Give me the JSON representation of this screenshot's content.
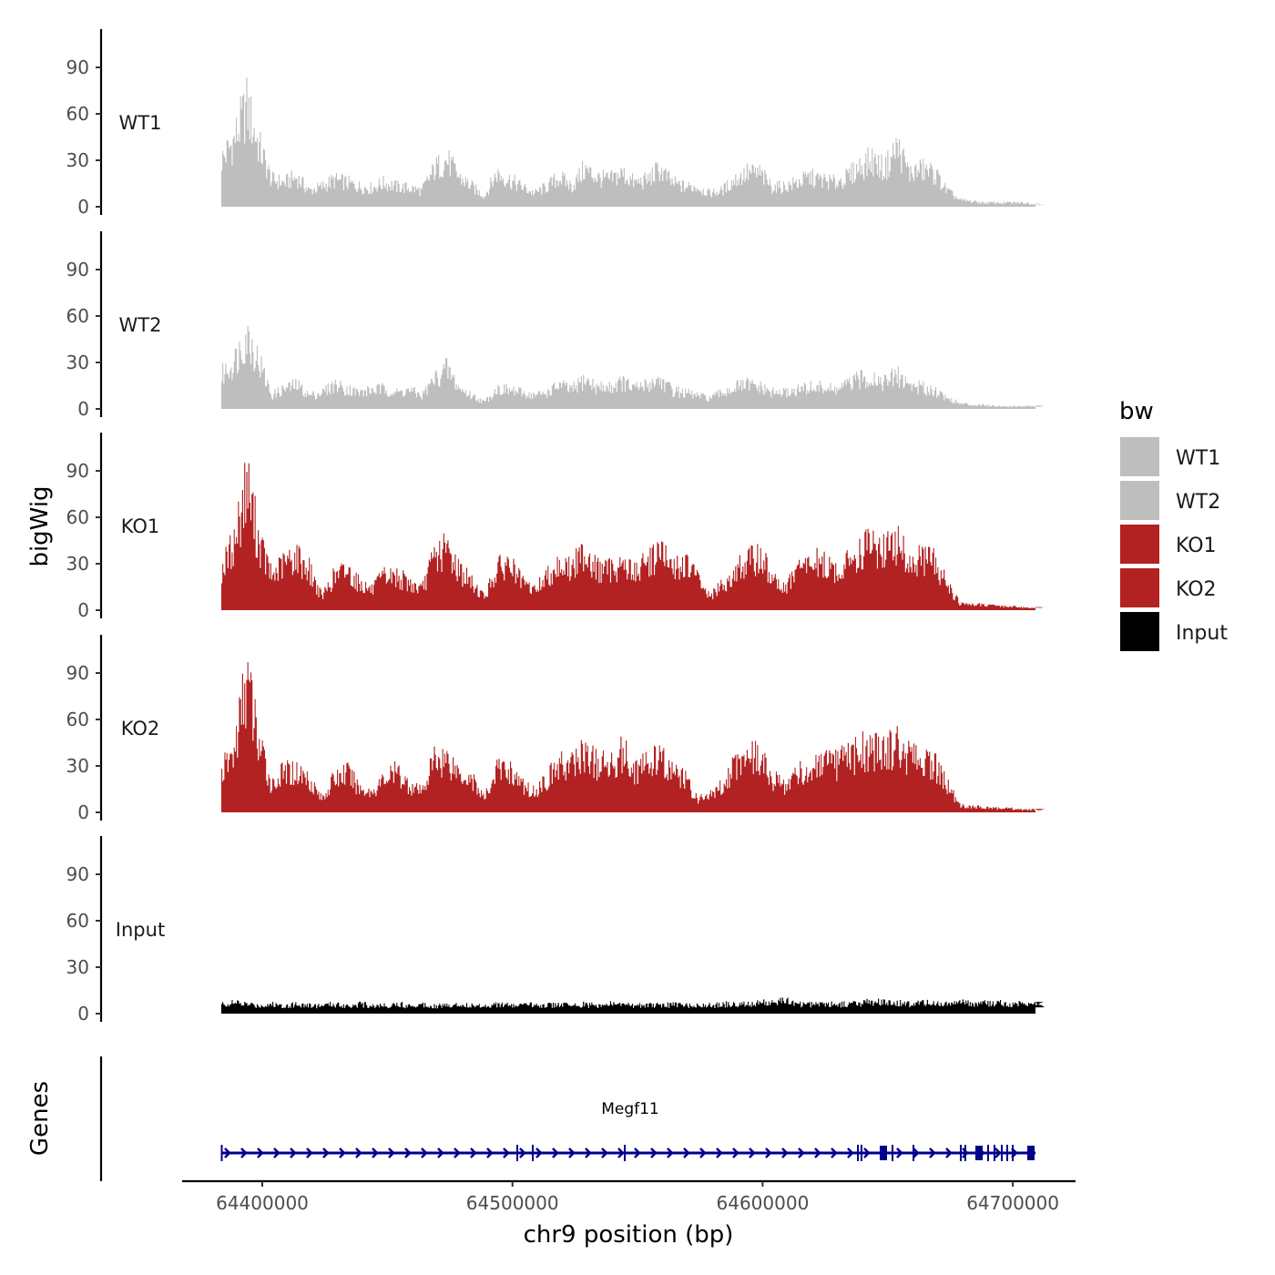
{
  "chart_data": {
    "type": "area",
    "title": "",
    "xlabel": "chr9 position (bp)",
    "ylabel_tracks": "bigWig",
    "ylabel_genes": "Genes",
    "xlim": [
      64367000,
      64725000
    ],
    "ylim": [
      0,
      115
    ],
    "x_ticks": [
      64400000,
      64500000,
      64600000,
      64700000
    ],
    "x_tick_labels": [
      "64400000",
      "64500000",
      "64600000",
      "64700000"
    ],
    "y_ticks": [
      0,
      30,
      60,
      90
    ],
    "y_tick_labels": [
      "0",
      "30",
      "60",
      "90"
    ],
    "bin_start": 64383600,
    "bin_size": 5000,
    "legend": {
      "title": "bw",
      "placement": "right",
      "entries": [
        {
          "label": "WT1",
          "color": "#bebebe"
        },
        {
          "label": "WT2",
          "color": "#bebebe"
        },
        {
          "label": "KO1",
          "color": "#b22222"
        },
        {
          "label": "KO2",
          "color": "#b22222"
        },
        {
          "label": "Input",
          "color": "#000000"
        }
      ]
    },
    "series": [
      {
        "name": "WT1",
        "color": "#bebebe",
        "values": [
          35,
          50,
          75,
          45,
          20,
          18,
          22,
          12,
          15,
          20,
          18,
          15,
          14,
          18,
          15,
          14,
          12,
          28,
          35,
          22,
          15,
          8,
          25,
          20,
          15,
          10,
          15,
          22,
          15,
          28,
          22,
          20,
          25,
          18,
          20,
          28,
          18,
          15,
          15,
          10,
          12,
          20,
          25,
          25,
          15,
          15,
          18,
          22,
          20,
          18,
          22,
          30,
          35,
          28,
          45,
          25,
          28,
          25,
          12,
          5,
          4,
          3,
          3,
          3,
          3,
          2
        ]
      },
      {
        "name": "WT2",
        "color": "#bebebe",
        "values": [
          25,
          35,
          55,
          35,
          10,
          15,
          18,
          10,
          12,
          18,
          15,
          12,
          14,
          15,
          12,
          14,
          10,
          22,
          30,
          15,
          10,
          5,
          15,
          14,
          12,
          10,
          12,
          18,
          14,
          22,
          16,
          16,
          20,
          15,
          18,
          22,
          14,
          12,
          10,
          8,
          12,
          16,
          18,
          16,
          12,
          12,
          14,
          16,
          16,
          14,
          18,
          22,
          24,
          20,
          25,
          18,
          16,
          14,
          8,
          4,
          3,
          3,
          2,
          2,
          2,
          2
        ]
      },
      {
        "name": "KO1",
        "color": "#b22222",
        "values": [
          30,
          50,
          95,
          50,
          25,
          35,
          40,
          30,
          10,
          25,
          30,
          20,
          15,
          25,
          25,
          20,
          15,
          40,
          45,
          30,
          20,
          10,
          30,
          35,
          20,
          15,
          25,
          35,
          30,
          45,
          30,
          30,
          35,
          28,
          35,
          45,
          30,
          35,
          25,
          10,
          18,
          28,
          35,
          40,
          25,
          15,
          30,
          35,
          35,
          28,
          35,
          45,
          48,
          45,
          50,
          35,
          38,
          35,
          20,
          5,
          4,
          4,
          3,
          3,
          2,
          2
        ]
      },
      {
        "name": "KO2",
        "color": "#b22222",
        "values": [
          30,
          45,
          100,
          50,
          20,
          30,
          30,
          25,
          10,
          25,
          30,
          18,
          15,
          25,
          30,
          20,
          15,
          40,
          40,
          30,
          25,
          10,
          32,
          32,
          20,
          15,
          25,
          35,
          35,
          45,
          35,
          35,
          45,
          32,
          35,
          40,
          30,
          25,
          10,
          12,
          20,
          35,
          45,
          40,
          25,
          20,
          30,
          30,
          35,
          35,
          40,
          45,
          48,
          45,
          50,
          40,
          38,
          35,
          20,
          5,
          4,
          4,
          3,
          3,
          2,
          2
        ]
      },
      {
        "name": "Input",
        "color": "#000000",
        "values": [
          7,
          8,
          7,
          6,
          7,
          6,
          7,
          6,
          6,
          7,
          6,
          7,
          6,
          6,
          7,
          6,
          7,
          6,
          6,
          7,
          6,
          6,
          7,
          6,
          6,
          7,
          6,
          7,
          6,
          7,
          6,
          7,
          7,
          6,
          7,
          6,
          7,
          6,
          7,
          6,
          7,
          7,
          7,
          8,
          8,
          10,
          7,
          7,
          8,
          7,
          7,
          8,
          9,
          8,
          8,
          7,
          8,
          8,
          7,
          9,
          7,
          8,
          8,
          7,
          8,
          7
        ]
      }
    ],
    "genes": [
      {
        "name": "Megf11",
        "start": 64383600,
        "end": 64709100,
        "strand": "+",
        "color": "#00008b",
        "exons": [
          64383800,
          64501930,
          64508120,
          64544890,
          64638080,
          64639500,
          64648270,
          64651910,
          64660280,
          64679200,
          64681020,
          64686490,
          64690130,
          64692680,
          64695590,
          64697770,
          64699960,
          64707240
        ]
      }
    ]
  }
}
